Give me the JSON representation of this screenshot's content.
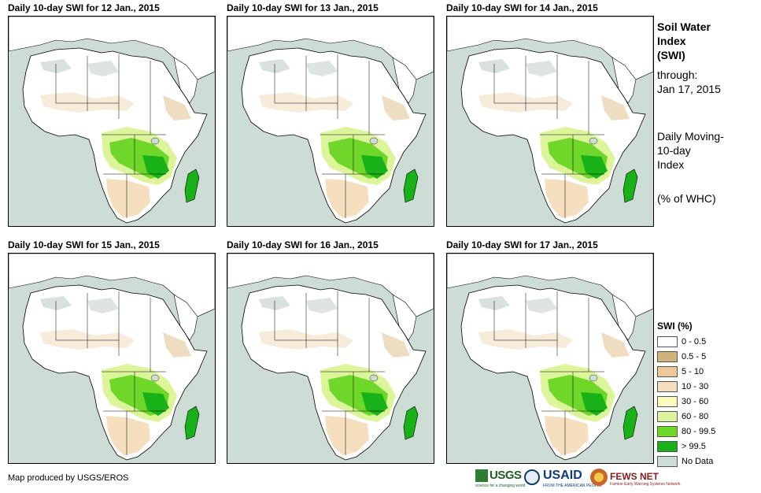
{
  "panels": [
    {
      "title": "Daily 10-day SWI for 12 Jan., 2015"
    },
    {
      "title": "Daily 10-day SWI for 13 Jan., 2015"
    },
    {
      "title": "Daily 10-day SWI for 14 Jan., 2015"
    },
    {
      "title": "Daily 10-day SWI for 15 Jan., 2015"
    },
    {
      "title": "Daily 10-day SWI for 16 Jan., 2015"
    },
    {
      "title": "Daily 10-day SWI for 17 Jan., 2015"
    }
  ],
  "sidebar": {
    "title_line1": "Soil Water",
    "title_line2": "Index",
    "title_line3": "(SWI)",
    "through_label": "through:",
    "through_date": "Jan 17, 2015",
    "desc_line1": "Daily Moving-",
    "desc_line2": "10-day",
    "desc_line3": "Index",
    "units": "(% of WHC)"
  },
  "legend": {
    "title": "SWI (%)",
    "items": [
      {
        "label": "0 - 0.5",
        "color": "#ffffff"
      },
      {
        "label": "0.5 - 5",
        "color": "#d2b27c"
      },
      {
        "label": "5 - 10",
        "color": "#ecc999"
      },
      {
        "label": "10 - 30",
        "color": "#f6dfbf"
      },
      {
        "label": "30 - 60",
        "color": "#fafac0"
      },
      {
        "label": "60 - 80",
        "color": "#ddf59a"
      },
      {
        "label": "80 - 99.5",
        "color": "#6fd62a"
      },
      {
        "label": "> 99.5",
        "color": "#18b218"
      },
      {
        "label": "No Data",
        "color": "#cdddd5"
      }
    ]
  },
  "footer": {
    "credit": "Map produced by USGS/EROS",
    "logos": {
      "usgs": "USGS",
      "usgs_tagline": "science for a changing world",
      "usaid": "USAID",
      "usaid_tagline": "FROM THE AMERICAN PEOPLE",
      "fews": "FEWS NET",
      "fews_tagline": "Famine Early Warning Systems Network"
    }
  },
  "colors": {
    "ocean": "#cdddd5",
    "land": "#ffffff",
    "border": "#000000"
  }
}
